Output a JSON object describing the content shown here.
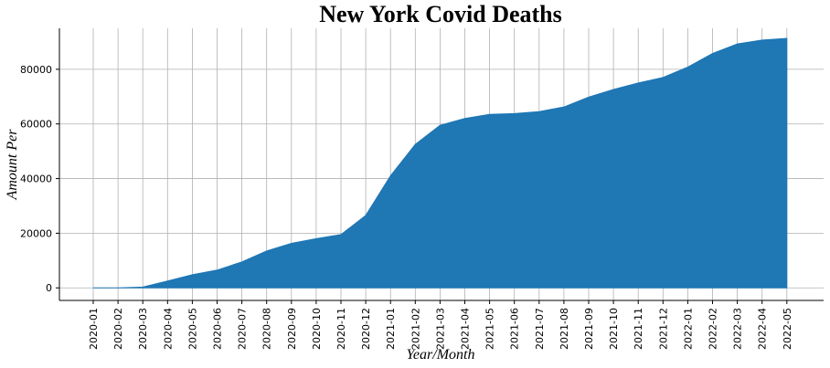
{
  "chart_data": {
    "type": "area",
    "title": "New York Covid Deaths",
    "xlabel": "Year/Month",
    "ylabel": "Amount Per",
    "categories": [
      "2020-01",
      "2020-02",
      "2020-03",
      "2020-04",
      "2020-05",
      "2020-06",
      "2020-07",
      "2020-08",
      "2020-09",
      "2020-10",
      "2020-11",
      "2020-12",
      "2021-01",
      "2021-02",
      "2021-03",
      "2021-04",
      "2021-05",
      "2021-06",
      "2021-07",
      "2021-08",
      "2021-09",
      "2021-10",
      "2021-11",
      "2021-12",
      "2022-01",
      "2022-02",
      "2022-03",
      "2022-04",
      "2022-05"
    ],
    "values": [
      0,
      0,
      300,
      2500,
      4800,
      6500,
      9500,
      13500,
      16300,
      18000,
      19500,
      26500,
      41000,
      52500,
      59500,
      62000,
      63500,
      63800,
      64500,
      66200,
      69800,
      72600,
      75000,
      77000,
      80800,
      85800,
      89300,
      90700,
      91300
    ],
    "yticks": [
      0,
      20000,
      40000,
      60000,
      80000
    ],
    "ylim": [
      -4600,
      95000
    ],
    "grid": true,
    "color": "#1f77b4"
  }
}
